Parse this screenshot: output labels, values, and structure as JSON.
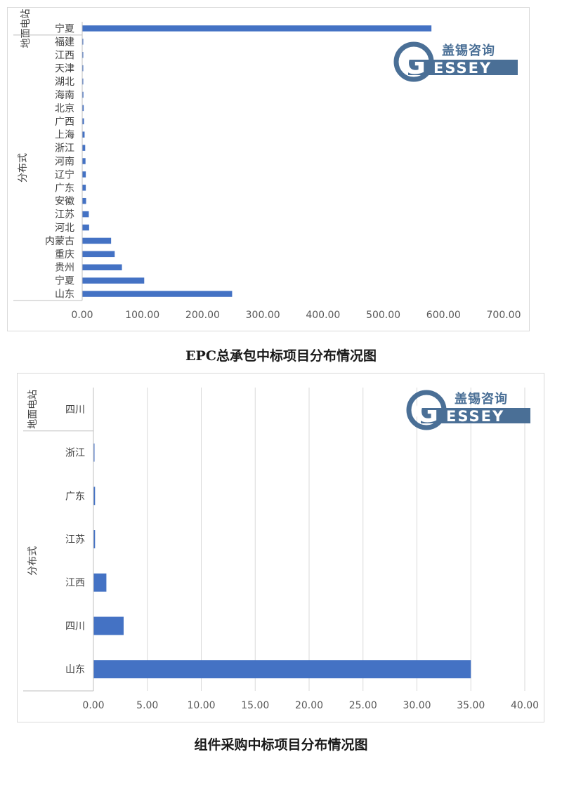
{
  "brand": {
    "cn": "盖锡咨询",
    "letter": "G",
    "rest": "ESSEY",
    "color": "#4a6f96"
  },
  "colors": {
    "bar": "#4472c4",
    "grid": "#d9d9d9",
    "axis": "#bfbfbf"
  },
  "chart_data": [
    {
      "type": "bar",
      "orientation": "horizontal",
      "caption": "EPC总承包中标项目分布情况图",
      "groups": [
        {
          "name": "地面电站",
          "categories": [
            "宁夏"
          ]
        },
        {
          "name": "分布式",
          "categories": [
            "福建",
            "江西",
            "天津",
            "湖北",
            "海南",
            "北京",
            "广西",
            "上海",
            "浙江",
            "河南",
            "辽宁",
            "广东",
            "安徽",
            "江苏",
            "河北",
            "内蒙古",
            "重庆",
            "贵州",
            "宁夏",
            "山东"
          ]
        }
      ],
      "values": [
        580,
        0.2,
        0.3,
        0.4,
        0.6,
        2,
        2.5,
        3,
        4,
        5,
        5.5,
        6,
        6,
        6.5,
        11,
        11.5,
        48,
        54,
        66,
        103,
        249
      ],
      "xlim": [
        0,
        700
      ],
      "xticks": [
        "0.00",
        "100.00",
        "200.00",
        "300.00",
        "400.00",
        "500.00",
        "600.00",
        "700.00"
      ],
      "grid": false
    },
    {
      "type": "bar",
      "orientation": "horizontal",
      "caption": "组件采购中标项目分布情况图",
      "groups": [
        {
          "name": "地面电站",
          "categories": [
            "四川"
          ]
        },
        {
          "name": "分布式",
          "categories": [
            "浙江",
            "广东",
            "江苏",
            "江西",
            "四川",
            "山东"
          ]
        }
      ],
      "values": [
        0,
        0.05,
        0.15,
        0.15,
        1.2,
        2.8,
        35
      ],
      "xlim": [
        0,
        40
      ],
      "xticks": [
        "0.00",
        "5.00",
        "10.00",
        "15.00",
        "20.00",
        "25.00",
        "30.00",
        "35.00",
        "40.00"
      ],
      "grid": true
    }
  ]
}
